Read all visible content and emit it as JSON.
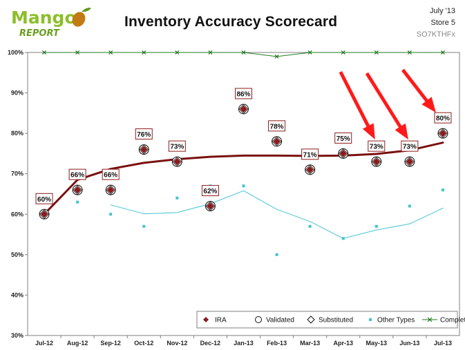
{
  "header": {
    "logo_main": "Mango",
    "logo_sub": "REPORT",
    "title": "Inventory Accuracy Scorecard",
    "period": "July '13",
    "store": "Store 5",
    "code": "SO7KTHFx"
  },
  "colors": {
    "ira": "#8b1a1a",
    "trend": "#7a0f0f",
    "other": "#40c4cf",
    "completion": "#1e7a1e",
    "arrow": "#ff1a1a",
    "label_border": "#8b1a1a"
  },
  "chart_data": {
    "type": "line",
    "title": "Inventory Accuracy Scorecard",
    "categories": [
      "Jul-12",
      "Aug-12",
      "Sep-12",
      "Oct-12",
      "Nov-12",
      "Dec-12",
      "Jan-13",
      "Feb-13",
      "Mar-13",
      "Apr-13",
      "May-13",
      "Jun-13",
      "Jul-13"
    ],
    "y_ticks": [
      "30%",
      "40%",
      "50%",
      "60%",
      "70%",
      "80%",
      "90%",
      "100%"
    ],
    "ylim": [
      30,
      100
    ],
    "series": [
      {
        "name": "IRA",
        "marker": "diamond",
        "values": [
          60,
          66,
          66,
          76,
          73,
          62,
          86,
          78,
          71,
          75,
          73,
          73,
          80
        ]
      },
      {
        "name": "Validated",
        "marker": "circle",
        "values": [
          60,
          66,
          66,
          76,
          73,
          62,
          86,
          78,
          71,
          75,
          73,
          73,
          80
        ]
      },
      {
        "name": "Substituted",
        "marker": "diamond-outline",
        "values": [
          60,
          66,
          66,
          76,
          73,
          62,
          86,
          78,
          71,
          75,
          73,
          73,
          80
        ]
      },
      {
        "name": "Other Types",
        "marker": "square",
        "values": [
          null,
          63,
          60,
          57,
          64,
          67,
          67,
          50,
          57,
          54,
          57,
          62,
          66
        ]
      },
      {
        "name": "Completion",
        "marker": "x",
        "values": [
          100,
          100,
          100,
          100,
          100,
          100,
          100,
          99,
          100,
          100,
          100,
          100,
          100
        ]
      }
    ],
    "trend_ira": [
      60,
      68.5,
      71.2,
      72.7,
      73.6,
      74.2,
      74.5,
      74.5,
      74.4,
      74.5,
      74.9,
      75.8,
      77.7
    ],
    "trend_other": [
      null,
      null,
      62.3,
      60.1,
      60.4,
      62.6,
      65.8,
      61.2,
      58.2,
      54,
      56.1,
      57.6,
      61.5
    ],
    "data_labels": [
      "60%",
      "66%",
      "66%",
      "76%",
      "73%",
      "62%",
      "86%",
      "78%",
      "71%",
      "75%",
      "73%",
      "73%",
      "80%"
    ],
    "legend": [
      "IRA",
      "Validated",
      "Substituted",
      "Other Types",
      "Completion"
    ],
    "legend_position": "bottom-right",
    "grid": true
  }
}
